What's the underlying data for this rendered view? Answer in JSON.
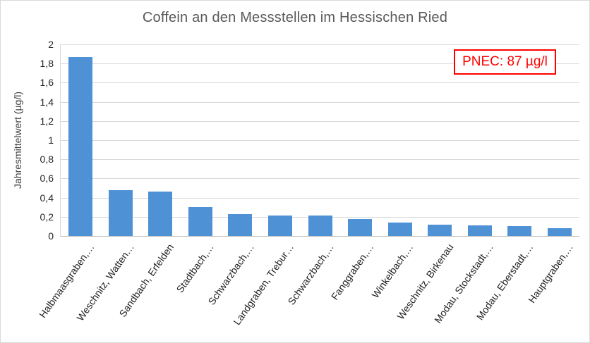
{
  "chart_data": {
    "type": "bar",
    "title": "Coffein an den Messstellen im Hessischen Ried",
    "xlabel": "",
    "ylabel": "Jahresmittelwert (µg/l)",
    "categories": [
      "Halbmaasgraben,…",
      "Weschnitz, Watten…",
      "Sandbach, Erfelden",
      "Stadtbach,…",
      "Schwarzbach,…",
      "Landgraben, Trebur…",
      "Schwarzbach,…",
      "Fanggraben,…",
      "Winkelbach,…",
      "Weschnitz, Birkenau",
      "Modau, Stockstadt,…",
      "Modau, Eberstadt,…",
      "Hauptgraben,…"
    ],
    "values": [
      1.87,
      0.48,
      0.46,
      0.3,
      0.23,
      0.21,
      0.21,
      0.18,
      0.14,
      0.12,
      0.11,
      0.1,
      0.08
    ],
    "ylim": [
      0,
      2
    ],
    "ytick_step": 0.2,
    "ytick_labels": [
      "0",
      "0,2",
      "0,4",
      "0,6",
      "0,8",
      "1",
      "1,2",
      "1,4",
      "1,6",
      "1,8",
      "2"
    ],
    "grid": true,
    "legend": false,
    "bar_color": "#4e91d5",
    "grid_color": "#d9d9d9",
    "annotation": {
      "text": "PNEC: 87 µg/l",
      "color": "#ff0000"
    }
  }
}
